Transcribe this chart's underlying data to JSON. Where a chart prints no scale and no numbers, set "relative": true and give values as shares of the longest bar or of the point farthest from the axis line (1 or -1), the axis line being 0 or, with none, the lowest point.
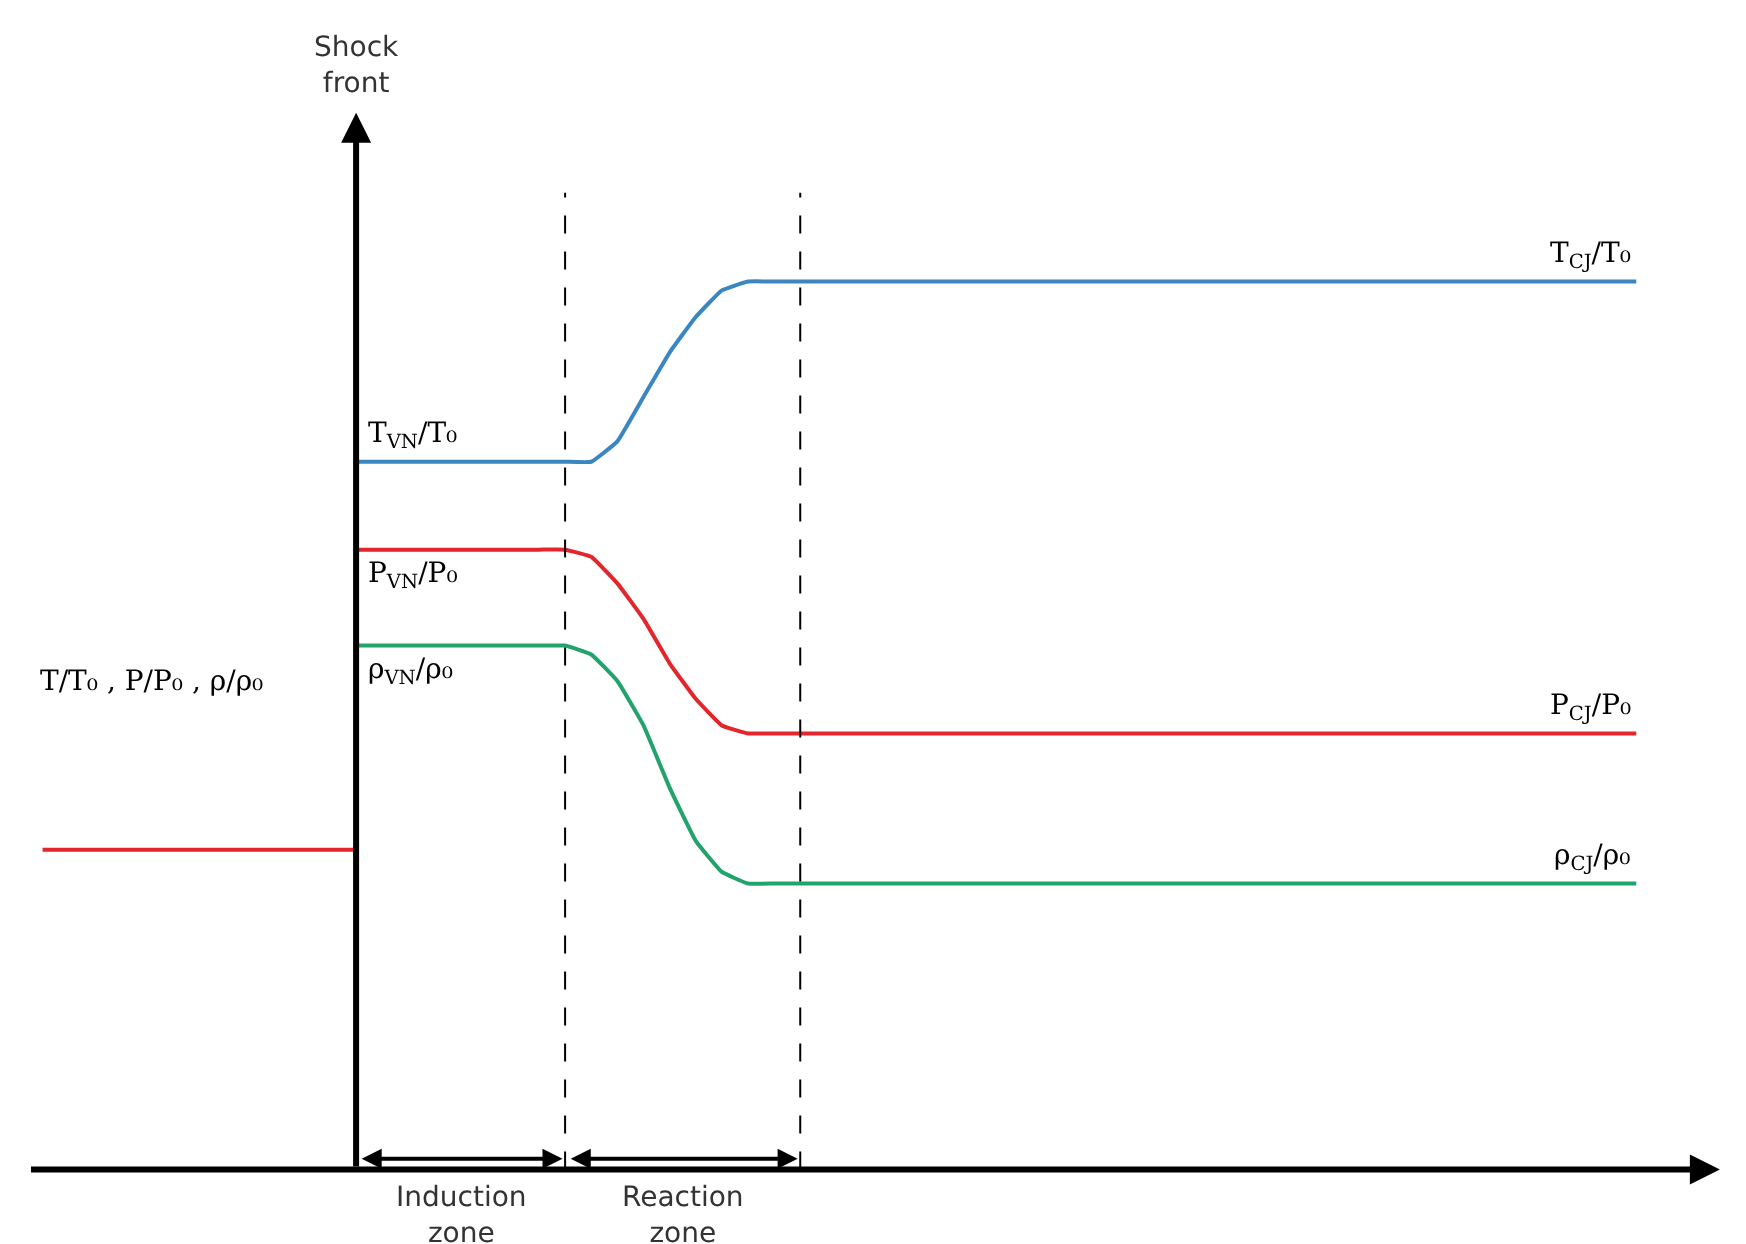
{
  "chart_data": {
    "type": "line",
    "relative": true,
    "legend": false,
    "ylabel": "T/T₀ , P/P₀ , ρ/ρ₀",
    "categories": [
      null,
      null,
      null,
      null,
      null,
      null,
      null,
      null,
      null,
      null,
      null,
      null,
      null,
      null,
      null,
      null,
      null,
      null,
      null,
      null,
      null,
      null,
      null,
      null,
      null,
      null,
      null,
      null,
      null,
      null,
      null,
      null,
      null,
      null,
      null,
      null,
      null,
      null,
      null,
      null,
      null,
      null,
      null,
      null,
      null,
      null,
      null,
      null,
      null,
      null,
      null,
      null,
      null,
      null,
      null,
      null,
      null,
      null,
      null,
      null,
      null,
      null
    ],
    "series": [
      {
        "color": "#e3262b",
        "values": [
          0.36,
          0.36,
          0.36,
          0.36,
          0.36,
          0.36,
          0.36,
          0.36,
          0.36,
          0.36,
          0.36,
          0.36,
          0.36,
          null,
          null,
          null,
          null,
          null,
          null,
          null,
          null,
          null,
          null,
          null,
          null,
          null,
          null,
          null,
          null,
          null,
          null,
          null,
          null,
          null,
          null,
          null,
          null,
          null,
          null,
          null,
          null,
          null,
          null,
          null,
          null,
          null,
          null,
          null,
          null,
          null,
          null,
          null,
          null,
          null,
          null,
          null,
          null,
          null,
          null,
          null,
          null,
          null
        ]
      },
      {
        "name": "T$_{CJ}$/T₀",
        "color": "#3a86c0",
        "values": [
          null,
          null,
          null,
          null,
          null,
          null,
          null,
          null,
          null,
          null,
          null,
          null,
          0.797,
          0.797,
          0.797,
          0.797,
          0.797,
          0.797,
          0.797,
          0.797,
          0.797,
          0.797,
          0.82,
          0.87,
          0.92,
          0.96,
          0.99,
          1,
          1,
          1,
          1,
          1,
          1,
          1,
          1,
          1,
          1,
          1,
          1,
          1,
          1,
          1,
          1,
          1,
          1,
          1,
          1,
          1,
          1,
          1,
          1,
          1,
          1,
          1,
          1,
          1,
          1,
          1,
          1,
          1,
          1,
          1
        ]
      },
      {
        "name": "P$_{CJ}$/P₀",
        "color": "#e3262b",
        "values": [
          null,
          null,
          null,
          null,
          null,
          null,
          null,
          null,
          null,
          null,
          null,
          null,
          0.698,
          0.698,
          0.698,
          0.698,
          0.698,
          0.698,
          0.698,
          0.698,
          0.698,
          0.69,
          0.66,
          0.62,
          0.57,
          0.53,
          0.5,
          0.491,
          0.491,
          0.491,
          0.491,
          0.491,
          0.491,
          0.491,
          0.491,
          0.491,
          0.491,
          0.491,
          0.491,
          0.491,
          0.491,
          0.491,
          0.491,
          0.491,
          0.491,
          0.491,
          0.491,
          0.491,
          0.491,
          0.491,
          0.491,
          0.491,
          0.491,
          0.491,
          0.491,
          0.491,
          0.491,
          0.491,
          0.491,
          0.491,
          0.491,
          0.491
        ]
      },
      {
        "name": "ρ$_{CJ}$/ρ₀",
        "color": "#22a36b",
        "values": [
          null,
          null,
          null,
          null,
          null,
          null,
          null,
          null,
          null,
          null,
          null,
          null,
          0.59,
          0.59,
          0.59,
          0.59,
          0.59,
          0.59,
          0.59,
          0.59,
          0.59,
          0.58,
          0.55,
          0.5,
          0.43,
          0.37,
          0.335,
          0.322,
          0.322,
          0.322,
          0.322,
          0.322,
          0.322,
          0.322,
          0.322,
          0.322,
          0.322,
          0.322,
          0.322,
          0.322,
          0.322,
          0.322,
          0.322,
          0.322,
          0.322,
          0.322,
          0.322,
          0.322,
          0.322,
          0.322,
          0.322,
          0.322,
          0.322,
          0.322,
          0.322,
          0.322,
          0.322,
          0.322,
          0.322,
          0.322,
          0.322,
          0.322
        ]
      }
    ],
    "annotations": [
      "T$_{VN}$/T₀",
      "P$_{VN}$/P₀",
      "ρ$_{VN}$/ρ₀",
      "Shock front",
      "Induction zone",
      "Reaction zone"
    ]
  }
}
